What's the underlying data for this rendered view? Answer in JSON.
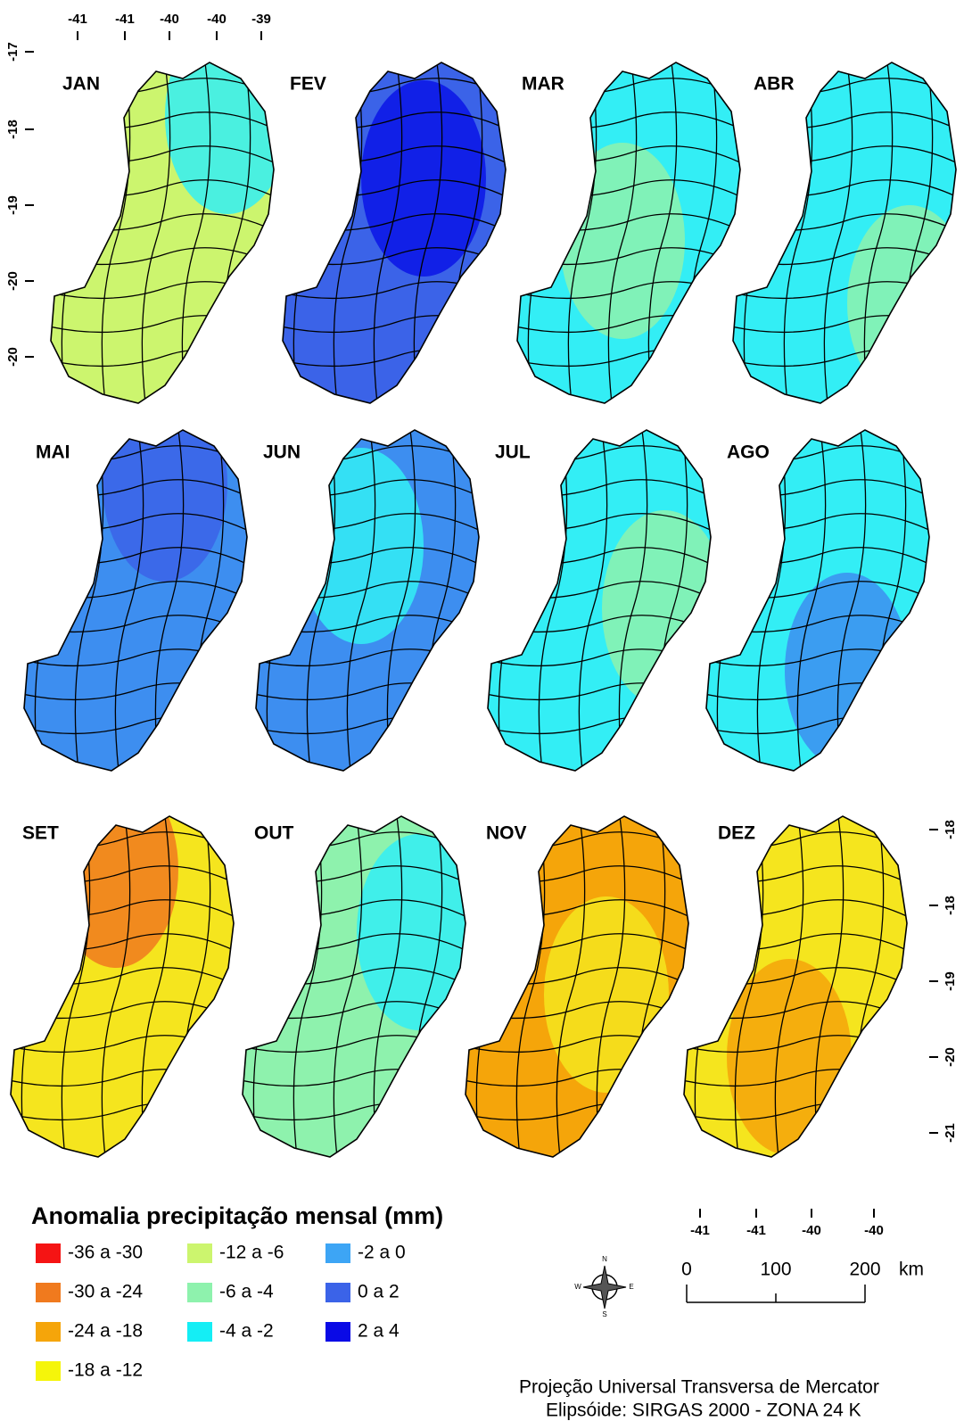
{
  "panels": [
    {
      "label": "JAN",
      "colors": [
        "#ccf56e",
        "#33eef5"
      ]
    },
    {
      "label": "FEV",
      "colors": [
        "#3b63e8",
        "#0a14e6"
      ]
    },
    {
      "label": "MAR",
      "colors": [
        "#33eef5",
        "#8ef2ad"
      ]
    },
    {
      "label": "ABR",
      "colors": [
        "#33eef5",
        "#8ef2ad"
      ]
    },
    {
      "label": "MAI",
      "colors": [
        "#3d8ef0",
        "#3b63e8"
      ]
    },
    {
      "label": "JUN",
      "colors": [
        "#3d8ef0",
        "#33eef5"
      ]
    },
    {
      "label": "JUL",
      "colors": [
        "#33eef5",
        "#8ef2ad"
      ]
    },
    {
      "label": "AGO",
      "colors": [
        "#33eef5",
        "#3d8ef0"
      ]
    },
    {
      "label": "SET",
      "colors": [
        "#f5e51e",
        "#f07a1e"
      ]
    },
    {
      "label": "OUT",
      "colors": [
        "#8ef2ad",
        "#33eef5"
      ]
    },
    {
      "label": "NOV",
      "colors": [
        "#f5a50a",
        "#f5e51e"
      ]
    },
    {
      "label": "DEZ",
      "colors": [
        "#f5e51e",
        "#f5a50a"
      ]
    }
  ],
  "ticks": {
    "top": [
      "-41",
      "-41",
      "-40",
      "-40",
      "-39"
    ],
    "left": [
      "-17",
      "-18",
      "-19",
      "-20",
      "-20"
    ],
    "right": [
      "-18",
      "-18",
      "-19",
      "-20",
      "-21"
    ],
    "bottom": [
      "-41",
      "-41",
      "-40",
      "-40"
    ]
  },
  "legend": {
    "title": "Anomalia precipitação mensal (mm)",
    "items": [
      {
        "label": "-36 a -30",
        "color": "#f51414"
      },
      {
        "label": "-30 a -24",
        "color": "#f07a1e"
      },
      {
        "label": "-24 a -18",
        "color": "#f5a50a"
      },
      {
        "label": "-18 a -12",
        "color": "#f5f50a"
      },
      {
        "label": "-12 a -6",
        "color": "#ccf56e"
      },
      {
        "label": "-6 a -4",
        "color": "#8ef2ad"
      },
      {
        "label": "-4 a -2",
        "color": "#14eef5"
      },
      {
        "label": "-2 a 0",
        "color": "#3da5f5"
      },
      {
        "label": "0 a 2",
        "color": "#3b63e8"
      },
      {
        "label": "2 a 4",
        "color": "#0a0ae6"
      }
    ]
  },
  "scale": {
    "labels": [
      "0",
      "100",
      "200"
    ],
    "unit": "km"
  },
  "compass": {
    "north": "N",
    "south": "S",
    "east": "E",
    "west": "W"
  },
  "projection": [
    "Projeção Universal Transversa de Mercator",
    "Elipsóide: SIRGAS 2000 - ZONA 24 K"
  ]
}
